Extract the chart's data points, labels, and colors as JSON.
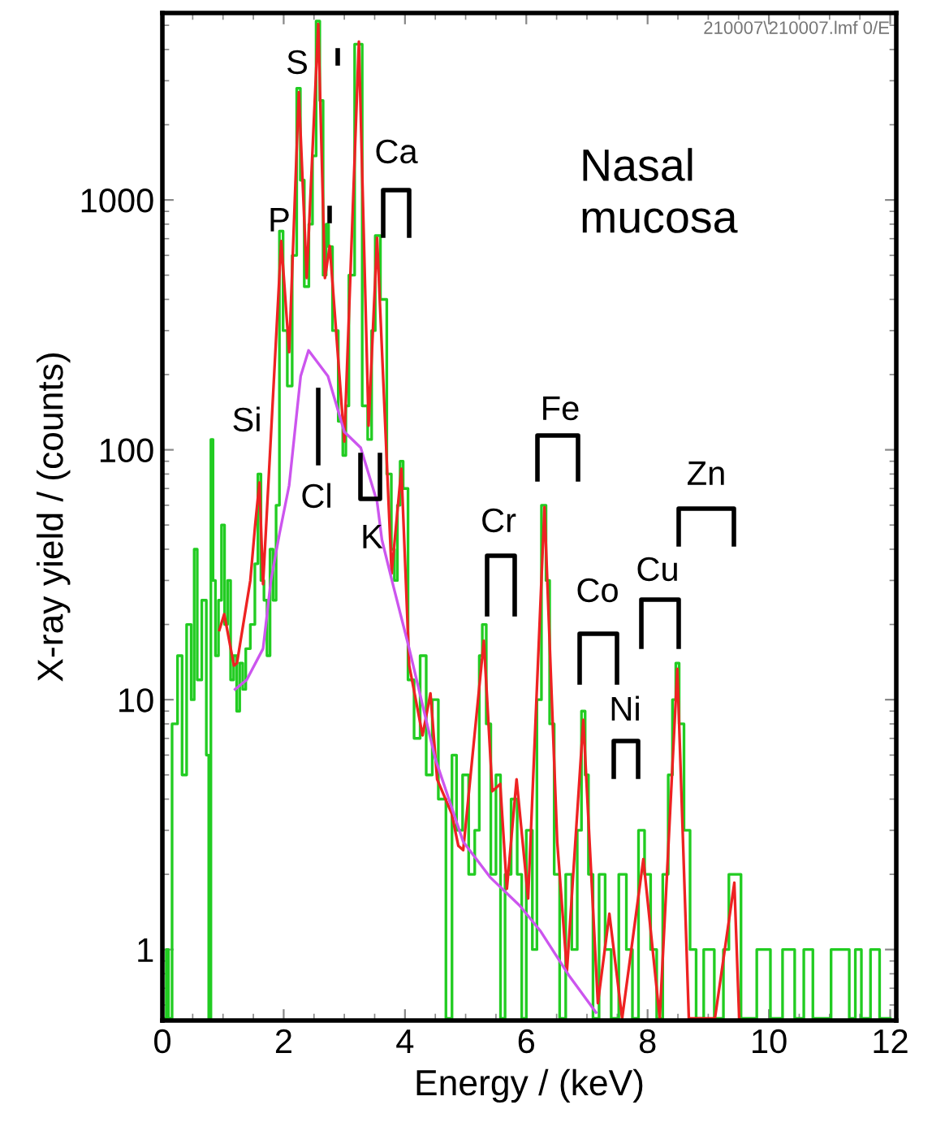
{
  "chart_data": {
    "type": "line",
    "xlabel": "Energy / (keV)",
    "ylabel": "X-ray yield / (counts)",
    "log": "y",
    "xlim": [
      0,
      12.1
    ],
    "ylim": [
      0.52,
      5600
    ],
    "xticks": [
      0,
      2,
      4,
      6,
      8,
      10,
      12
    ],
    "yticks": [
      1,
      10,
      100,
      1000
    ],
    "series": [
      {
        "type": "step",
        "color": "#22cc22",
        "x": [
          0.05,
          0.08,
          0.12,
          0.2,
          0.3,
          0.35,
          0.45,
          0.5,
          0.55,
          0.6,
          0.7,
          0.75,
          0.78,
          0.82,
          0.85,
          0.9,
          0.95,
          1.0,
          1.05,
          1.1,
          1.15,
          1.2,
          1.25,
          1.3,
          1.35,
          1.4,
          1.5,
          1.55,
          1.6,
          1.65,
          1.7,
          1.75,
          1.8,
          1.85,
          1.9,
          1.96,
          2.02,
          2.1,
          2.18,
          2.25,
          2.3,
          2.38,
          2.45,
          2.5,
          2.57,
          2.62,
          2.68,
          2.72,
          2.76,
          2.85,
          2.95,
          3.0,
          3.05,
          3.1,
          3.24,
          3.35,
          3.42,
          3.48,
          3.54,
          3.65,
          3.75,
          3.8,
          3.85,
          3.9,
          3.94,
          4.0,
          4.1,
          4.2,
          4.3,
          4.4,
          4.5,
          4.6,
          4.75,
          4.8,
          4.9,
          5.0,
          5.1,
          5.2,
          5.25,
          5.3,
          5.38,
          5.45,
          5.55,
          5.6,
          5.7,
          5.8,
          5.9,
          5.95,
          6.05,
          6.15,
          6.2,
          6.3,
          6.35,
          6.42,
          6.5,
          6.6,
          6.7,
          6.8,
          6.88,
          6.94,
          7.0,
          7.05,
          7.15,
          7.25,
          7.35,
          7.45,
          7.6,
          7.7,
          7.8,
          7.9,
          8.0,
          8.1,
          8.2,
          8.3,
          8.38,
          8.44,
          8.49,
          8.55,
          8.65,
          8.75,
          8.85,
          9.0,
          9.2,
          9.3,
          9.38,
          9.48,
          9.6,
          10.0,
          10.05,
          10.4,
          10.45,
          10.7,
          10.75,
          11.3,
          11.35,
          11.5,
          11.55,
          11.8,
          11.85,
          12.0
        ],
        "values": [
          0.53,
          1,
          0.53,
          8,
          15,
          5,
          20,
          10,
          40,
          12,
          25,
          6,
          0.53,
          110,
          30,
          15,
          25,
          50,
          20,
          30,
          12,
          15,
          9,
          14,
          11,
          16,
          20,
          35,
          80,
          30,
          25,
          15,
          40,
          25,
          60,
          750,
          300,
          180,
          600,
          2800,
          1200,
          450,
          800,
          1500,
          5200,
          2500,
          500,
          800,
          650,
          300,
          130,
          95,
          150,
          500,
          4200,
          150,
          110,
          300,
          720,
          400,
          80,
          40,
          30,
          60,
          90,
          70,
          12,
          7,
          15,
          5,
          10,
          4,
          0.53,
          6,
          3,
          5,
          2,
          3,
          15,
          20,
          8,
          2,
          5,
          0.53,
          2,
          4,
          2,
          0.53,
          3,
          1,
          10,
          60,
          30,
          8,
          2,
          0.53,
          2,
          1,
          3,
          9,
          5,
          2,
          0.53,
          2,
          1,
          0.53,
          2,
          1,
          0.53,
          3,
          2,
          1,
          0.53,
          2,
          5,
          10,
          14,
          8,
          3,
          1,
          0.53,
          1,
          0.53,
          1,
          2,
          2,
          0.53,
          1,
          0.53,
          1,
          0.53,
          1,
          0.53,
          1,
          0.53,
          1,
          0.53,
          1,
          0.53,
          0.53
        ]
      },
      {
        "color": "#ee2222",
        "x": [
          0.94,
          1.02,
          1.18,
          1.23,
          1.45,
          1.53,
          1.6,
          1.66,
          1.96,
          2.09,
          2.25,
          2.38,
          2.57,
          2.68,
          2.76,
          3.0,
          3.24,
          3.4,
          3.54,
          3.78,
          3.94,
          4.07,
          4.29,
          4.42,
          4.53,
          4.77,
          4.88,
          4.96,
          5.3,
          5.44,
          5.57,
          5.68,
          5.84,
          6.03,
          6.3,
          6.51,
          6.67,
          6.94,
          7.18,
          7.37,
          7.58,
          7.93,
          8.2,
          8.49,
          8.68,
          9.11,
          9.43,
          9.51
        ],
        "values": [
          19,
          22,
          13.7,
          14,
          30,
          50,
          74,
          29,
          685,
          246,
          2700,
          487,
          5060,
          487,
          654,
          108,
          4300,
          125,
          706,
          32,
          84,
          13.7,
          7.2,
          10.6,
          4.8,
          3.5,
          2.6,
          2.5,
          17.2,
          4.3,
          4.6,
          1.75,
          4.8,
          1.6,
          59,
          2.7,
          0.82,
          8.3,
          0.61,
          1.39,
          0.53,
          2.3,
          0.53,
          13.3,
          0.53,
          0.53,
          1.85,
          0.53
        ]
      },
      {
        "color": "#cc55ee",
        "x": [
          1.2,
          1.39,
          1.66,
          1.79,
          1.93,
          2.09,
          2.28,
          2.41,
          2.73,
          3.0,
          3.27,
          3.54,
          3.62,
          3.8,
          4.07,
          4.5,
          4.96,
          5.41,
          5.89,
          6.24,
          6.7,
          7.15
        ],
        "values": [
          11,
          12,
          16,
          30,
          46,
          72,
          197,
          250,
          197,
          118,
          102,
          62,
          43.6,
          29,
          16,
          5.8,
          2.7,
          1.94,
          1.5,
          1.18,
          0.79,
          0.56
        ]
      }
    ],
    "annotations": [
      "S",
      "P",
      "Si",
      "Cl",
      "K",
      "Ca",
      "Fe",
      "Cr",
      "Co",
      "Ni",
      "Cu",
      "Zn",
      "Nasal\nmucosa",
      "210007\\210007.lmf 0/E"
    ]
  }
}
